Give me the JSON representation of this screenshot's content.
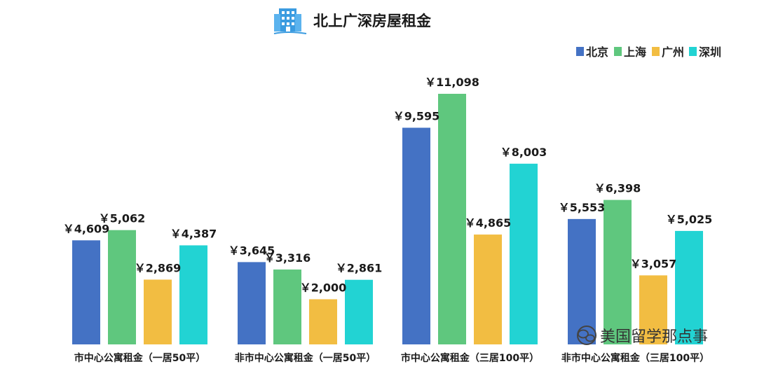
{
  "chart_data": {
    "type": "bar",
    "title": "北上广深房屋租金",
    "categories": [
      "市中心公寓租金（一居50平）",
      "非市中心公寓租金（一居50平）",
      "市中心公寓租金（三居100平）",
      "非市中心公寓租金（三居100平）"
    ],
    "series": [
      {
        "name": "北京",
        "color": "#4472c4",
        "values": [
          4609,
          3645,
          9595,
          5553
        ],
        "labels": [
          "￥4,609",
          "￥3,645",
          "￥9,595",
          "￥5,553"
        ]
      },
      {
        "name": "上海",
        "color": "#5fc77e",
        "values": [
          5062,
          3316,
          11098,
          6398
        ],
        "labels": [
          "￥5,062",
          "￥3,316",
          "￥11,098",
          "￥6,398"
        ]
      },
      {
        "name": "广州",
        "color": "#f2bd42",
        "values": [
          2869,
          2000,
          4865,
          3057
        ],
        "labels": [
          "￥2,869",
          "￥2,000",
          "￥4,865",
          "￥3,057"
        ]
      },
      {
        "name": "深圳",
        "color": "#22d3d3",
        "values": [
          4387,
          2861,
          8003,
          5025
        ],
        "labels": [
          "￥4,387",
          "￥2,861",
          "￥8,003",
          "￥5,025"
        ]
      }
    ],
    "legend_position": "top-right",
    "grid": false,
    "ylim": [
      0,
      12000
    ]
  },
  "title_icon": "office-building-icon",
  "watermark": {
    "icon": "wechat-icon",
    "text": "美国留学那点事"
  }
}
